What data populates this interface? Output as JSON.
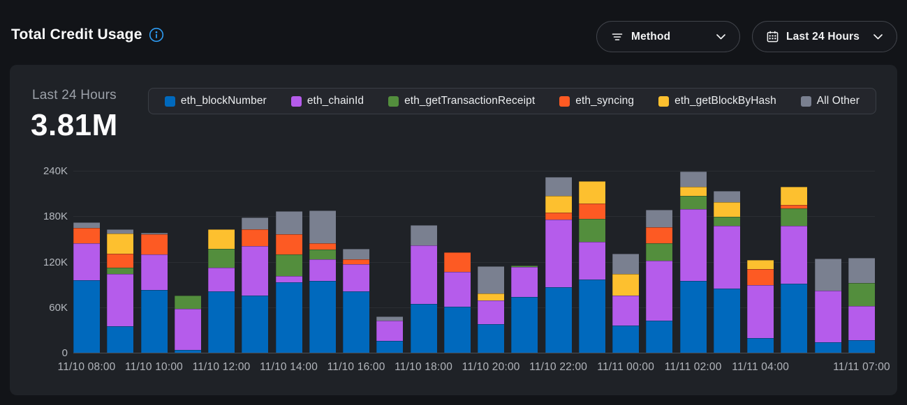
{
  "header": {
    "title": "Total Credit Usage",
    "method_filter": {
      "label": "Method",
      "icon": "filter-icon"
    },
    "range_filter": {
      "label": "Last 24 Hours",
      "icon": "calendar-icon"
    },
    "info_icon_color": "#2e9df5"
  },
  "card": {
    "stat_label": "Last 24 Hours",
    "stat_value": "3.81M"
  },
  "chart_data": {
    "type": "bar",
    "stacked": true,
    "title": "Total Credit Usage - Last 24 Hours",
    "unit": "K credits",
    "ylim": [
      0,
      240
    ],
    "grid": true,
    "legend_position": "top",
    "y_ticks": [
      {
        "value": 0,
        "label": "0"
      },
      {
        "value": 60,
        "label": "60K"
      },
      {
        "value": 120,
        "label": "120K"
      },
      {
        "value": 180,
        "label": "180K"
      },
      {
        "value": 240,
        "label": "240K"
      }
    ],
    "num_bars": 24,
    "x_tick_labels": [
      {
        "bar_index": 0,
        "label": "11/10 08:00"
      },
      {
        "bar_index": 2,
        "label": "11/10 10:00"
      },
      {
        "bar_index": 4,
        "label": "11/10 12:00"
      },
      {
        "bar_index": 6,
        "label": "11/10 14:00"
      },
      {
        "bar_index": 8,
        "label": "11/10 16:00"
      },
      {
        "bar_index": 10,
        "label": "11/10 18:00"
      },
      {
        "bar_index": 12,
        "label": "11/10 20:00"
      },
      {
        "bar_index": 14,
        "label": "11/10 22:00"
      },
      {
        "bar_index": 16,
        "label": "11/11 00:00"
      },
      {
        "bar_index": 18,
        "label": "11/11 02:00"
      },
      {
        "bar_index": 20,
        "label": "11/11 04:00"
      },
      {
        "bar_index": 23,
        "label": "11/11 07:00"
      }
    ],
    "series": [
      {
        "name": "eth_blockNumber",
        "color": "#0069bd",
        "values": [
          96,
          35,
          83,
          4,
          81,
          75,
          93,
          95,
          81,
          16,
          64,
          61,
          38,
          74,
          86,
          97,
          36,
          42,
          95,
          85,
          19,
          91,
          14,
          17
        ]
      },
      {
        "name": "eth_chainId",
        "color": "#b55ceb",
        "values": [
          48,
          69,
          47,
          54,
          31,
          66,
          8,
          28,
          36,
          26,
          78,
          46,
          31,
          39,
          90,
          49,
          39,
          79,
          94,
          82,
          70,
          76,
          68,
          45
        ]
      },
      {
        "name": "eth_getTransactionReceipt",
        "color": "#538e3d",
        "values": [
          0,
          8,
          0,
          17,
          25,
          0,
          29,
          13,
          0,
          0,
          0,
          0,
          0,
          2,
          0,
          31,
          0,
          23,
          18,
          12,
          0,
          23,
          0,
          30
        ]
      },
      {
        "name": "eth_syncing",
        "color": "#fd5a23",
        "values": [
          21,
          19,
          26,
          0,
          0,
          22,
          26,
          8,
          6,
          0,
          0,
          25,
          0,
          0,
          9,
          20,
          0,
          22,
          0,
          0,
          21,
          5,
          0,
          0
        ]
      },
      {
        "name": "eth_getBlockByHash",
        "color": "#fdc02f",
        "values": [
          0,
          26,
          0,
          0,
          26,
          0,
          0,
          0,
          0,
          0,
          0,
          0,
          9,
          0,
          22,
          29,
          29,
          0,
          12,
          20,
          12,
          24,
          0,
          0
        ]
      },
      {
        "name": "All Other",
        "color": "#7a8090",
        "values": [
          7,
          6,
          2,
          0,
          0,
          15,
          31,
          44,
          14,
          6,
          26,
          0,
          36,
          0,
          25,
          0,
          27,
          23,
          20,
          14,
          0,
          0,
          42,
          33
        ]
      }
    ]
  }
}
